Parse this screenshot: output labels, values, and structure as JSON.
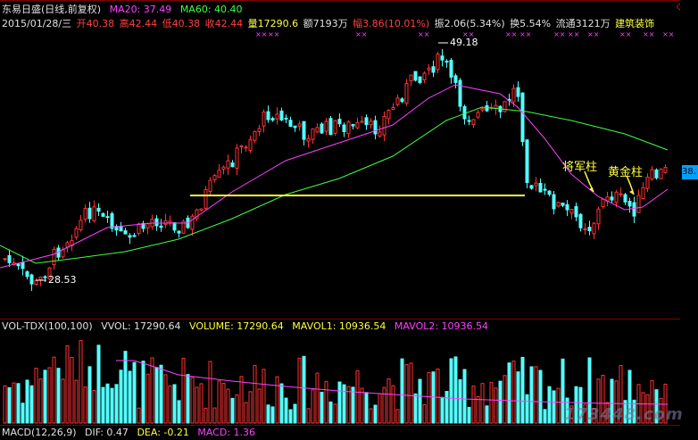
{
  "header": {
    "stock": "东易日盛(日线,前复权)",
    "ma20": "MA20: 37.49",
    "ma60": "MA60: 40.40",
    "date": "2015/01/28/三",
    "open": "开40.38",
    "high": "高42.44",
    "low": "低40.38",
    "close": "收42.44",
    "volume": "量17290.6",
    "amount": "额7193万",
    "change": "幅3.86(10.01%)",
    "amplitude": "振2.06(5.34%)",
    "turnover": "换5.54%",
    "float": "流通3121万",
    "sector": "建筑装饰",
    "icons": "◇ □"
  },
  "price_labels": {
    "high": "49.18",
    "low": "28.53",
    "right_tag": "38."
  },
  "volume_header": {
    "name": "VOL-TDX(100,100)",
    "vvol": "VVOL: 17290.64",
    "volume": "VOLUME: 17290.64",
    "mavol1": "MAVOL1: 10936.54",
    "mavol2": "MAVOL2: 10936.54"
  },
  "macd_header": {
    "name": "MACD(12,26,9)",
    "dif": "DIF: 0.47",
    "dea": "DEA: -0.21",
    "macd": "MACD: 1.36"
  },
  "annotations": {
    "general": "将军柱",
    "golden": "黄金柱"
  },
  "watermark": "173448.com",
  "colors": {
    "up": "#ff3232",
    "down": "#54ffff",
    "ma20": "#ff40ff",
    "ma60": "#40ff40",
    "yellow_line": "#ffff40",
    "label_white": "#ffffff"
  }
}
